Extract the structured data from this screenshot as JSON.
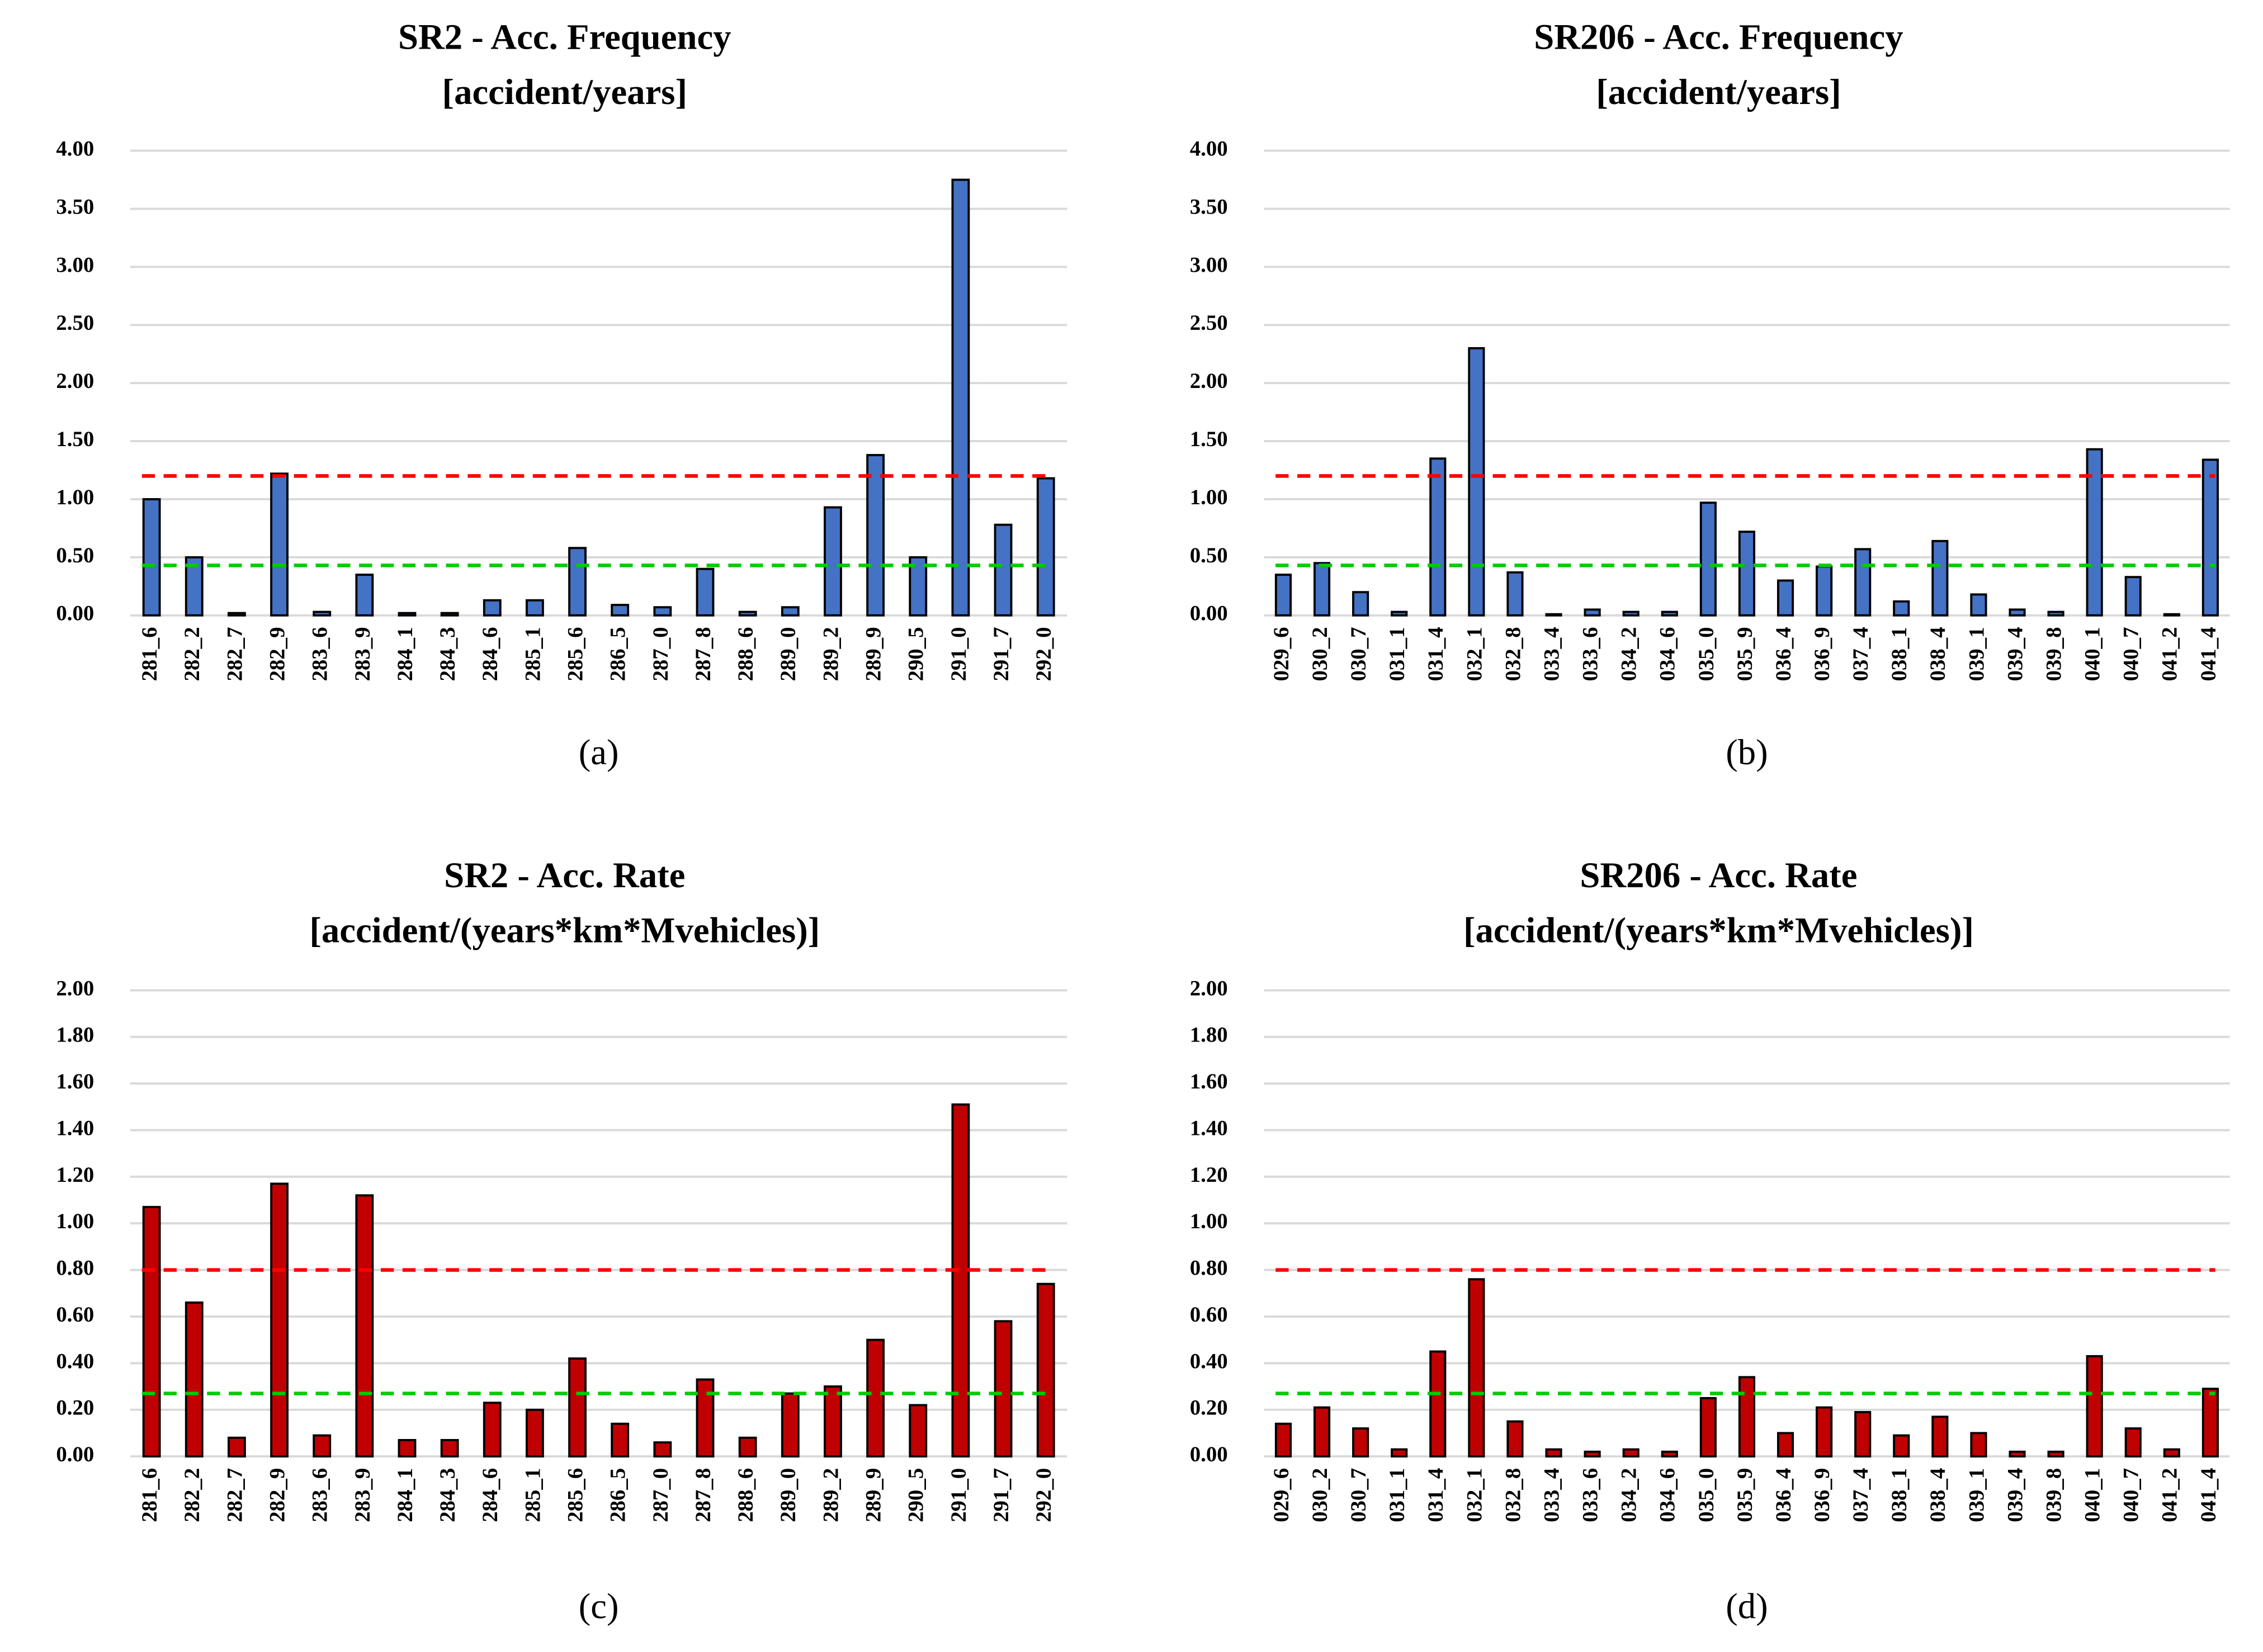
{
  "chart_data": [
    {
      "type": "bar",
      "title": "SR2 - Acc. Frequency",
      "subtitle": "[accident/years]",
      "caption": "(a)",
      "categories": [
        "281_6",
        "282_2",
        "282_7",
        "282_9",
        "283_6",
        "283_9",
        "284_1",
        "284_3",
        "284_6",
        "285_1",
        "285_6",
        "286_5",
        "287_0",
        "287_8",
        "288_6",
        "289_0",
        "289_2",
        "289_9",
        "290_5",
        "291_0",
        "291_7",
        "292_0"
      ],
      "values": [
        1.0,
        0.5,
        0.02,
        1.22,
        0.03,
        0.35,
        0.02,
        0.02,
        0.13,
        0.13,
        0.58,
        0.09,
        0.07,
        0.4,
        0.03,
        0.07,
        0.93,
        1.38,
        0.5,
        3.75,
        0.78,
        1.18
      ],
      "color": "#4472c4",
      "grid": true,
      "ylim": [
        0,
        4
      ],
      "yticks": [
        {
          "value": 0,
          "label": "0.00"
        },
        {
          "value": 0.5,
          "label": "0.50"
        },
        {
          "value": 1,
          "label": "1.00"
        },
        {
          "value": 1.5,
          "label": "1.50"
        },
        {
          "value": 2,
          "label": "2.00"
        },
        {
          "value": 2.5,
          "label": "2.50"
        },
        {
          "value": 3,
          "label": "3.00"
        },
        {
          "value": 3.5,
          "label": "3.50"
        },
        {
          "value": 4,
          "label": "4.00"
        }
      ],
      "reference_lines": [
        {
          "value": 1.2,
          "color": "#ff0000"
        },
        {
          "value": 0.43,
          "color": "#00cc00"
        }
      ]
    },
    {
      "type": "bar",
      "title": "SR206 - Acc. Frequency",
      "subtitle": "[accident/years]",
      "caption": "(b)",
      "categories": [
        "029_6",
        "030_2",
        "030_7",
        "031_1",
        "031_4",
        "032_1",
        "032_8",
        "033_4",
        "033_6",
        "034_2",
        "034_6",
        "035_0",
        "035_9",
        "036_4",
        "036_9",
        "037_4",
        "038_1",
        "038_4",
        "039_1",
        "039_4",
        "039_8",
        "040_1",
        "040_7",
        "041_2",
        "041_4"
      ],
      "values": [
        0.35,
        0.45,
        0.2,
        0.03,
        1.35,
        2.3,
        0.37,
        0.01,
        0.05,
        0.03,
        0.03,
        0.97,
        0.72,
        0.3,
        0.42,
        0.57,
        0.12,
        0.64,
        0.18,
        0.05,
        0.03,
        1.43,
        0.33,
        0.01,
        1.34
      ],
      "color": "#4472c4",
      "grid": true,
      "ylim": [
        0,
        4
      ],
      "yticks": [
        {
          "value": 0,
          "label": "0.00"
        },
        {
          "value": 0.5,
          "label": "0.50"
        },
        {
          "value": 1,
          "label": "1.00"
        },
        {
          "value": 1.5,
          "label": "1.50"
        },
        {
          "value": 2,
          "label": "2.00"
        },
        {
          "value": 2.5,
          "label": "2.50"
        },
        {
          "value": 3,
          "label": "3.00"
        },
        {
          "value": 3.5,
          "label": "3.50"
        },
        {
          "value": 4,
          "label": "4.00"
        }
      ],
      "reference_lines": [
        {
          "value": 1.2,
          "color": "#ff0000"
        },
        {
          "value": 0.43,
          "color": "#00cc00"
        }
      ]
    },
    {
      "type": "bar",
      "title": "SR2 - Acc. Rate",
      "subtitle": "[accident/(years*km*Mvehicles)]",
      "caption": "(c)",
      "categories": [
        "281_6",
        "282_2",
        "282_7",
        "282_9",
        "283_6",
        "283_9",
        "284_1",
        "284_3",
        "284_6",
        "285_1",
        "285_6",
        "286_5",
        "287_0",
        "287_8",
        "288_6",
        "289_0",
        "289_2",
        "289_9",
        "290_5",
        "291_0",
        "291_7",
        "292_0"
      ],
      "values": [
        1.07,
        0.66,
        0.08,
        1.17,
        0.09,
        1.12,
        0.07,
        0.07,
        0.23,
        0.2,
        0.42,
        0.14,
        0.06,
        0.33,
        0.08,
        0.27,
        0.3,
        0.5,
        0.22,
        1.51,
        0.58,
        0.74
      ],
      "color": "#c00000",
      "grid": true,
      "ylim": [
        0,
        2
      ],
      "yticks": [
        {
          "value": 0,
          "label": "0.00"
        },
        {
          "value": 0.2,
          "label": "0.20"
        },
        {
          "value": 0.4,
          "label": "0.40"
        },
        {
          "value": 0.6,
          "label": "0.60"
        },
        {
          "value": 0.8,
          "label": "0.80"
        },
        {
          "value": 1,
          "label": "1.00"
        },
        {
          "value": 1.2,
          "label": "1.20"
        },
        {
          "value": 1.4,
          "label": "1.40"
        },
        {
          "value": 1.6,
          "label": "1.60"
        },
        {
          "value": 1.8,
          "label": "1.80"
        },
        {
          "value": 2,
          "label": "2.00"
        }
      ],
      "reference_lines": [
        {
          "value": 0.8,
          "color": "#ff0000"
        },
        {
          "value": 0.27,
          "color": "#00cc00"
        }
      ]
    },
    {
      "type": "bar",
      "title": "SR206 - Acc. Rate",
      "subtitle": "[accident/(years*km*Mvehicles)]",
      "caption": "(d)",
      "categories": [
        "029_6",
        "030_2",
        "030_7",
        "031_1",
        "031_4",
        "032_1",
        "032_8",
        "033_4",
        "033_6",
        "034_2",
        "034_6",
        "035_0",
        "035_9",
        "036_4",
        "036_9",
        "037_4",
        "038_1",
        "038_4",
        "039_1",
        "039_4",
        "039_8",
        "040_1",
        "040_7",
        "041_2",
        "041_4"
      ],
      "values": [
        0.14,
        0.21,
        0.12,
        0.03,
        0.45,
        0.76,
        0.15,
        0.03,
        0.02,
        0.03,
        0.02,
        0.25,
        0.34,
        0.1,
        0.21,
        0.19,
        0.09,
        0.17,
        0.1,
        0.02,
        0.02,
        0.43,
        0.12,
        0.03,
        0.29
      ],
      "color": "#c00000",
      "grid": true,
      "ylim": [
        0,
        2
      ],
      "yticks": [
        {
          "value": 0,
          "label": "0.00"
        },
        {
          "value": 0.2,
          "label": "0.20"
        },
        {
          "value": 0.4,
          "label": "0.40"
        },
        {
          "value": 0.6,
          "label": "0.60"
        },
        {
          "value": 0.8,
          "label": "0.80"
        },
        {
          "value": 1,
          "label": "1.00"
        },
        {
          "value": 1.2,
          "label": "1.20"
        },
        {
          "value": 1.4,
          "label": "1.40"
        },
        {
          "value": 1.6,
          "label": "1.60"
        },
        {
          "value": 1.8,
          "label": "1.80"
        },
        {
          "value": 2,
          "label": "2.00"
        }
      ],
      "reference_lines": [
        {
          "value": 0.8,
          "color": "#ff0000"
        },
        {
          "value": 0.27,
          "color": "#00cc00"
        }
      ]
    }
  ]
}
